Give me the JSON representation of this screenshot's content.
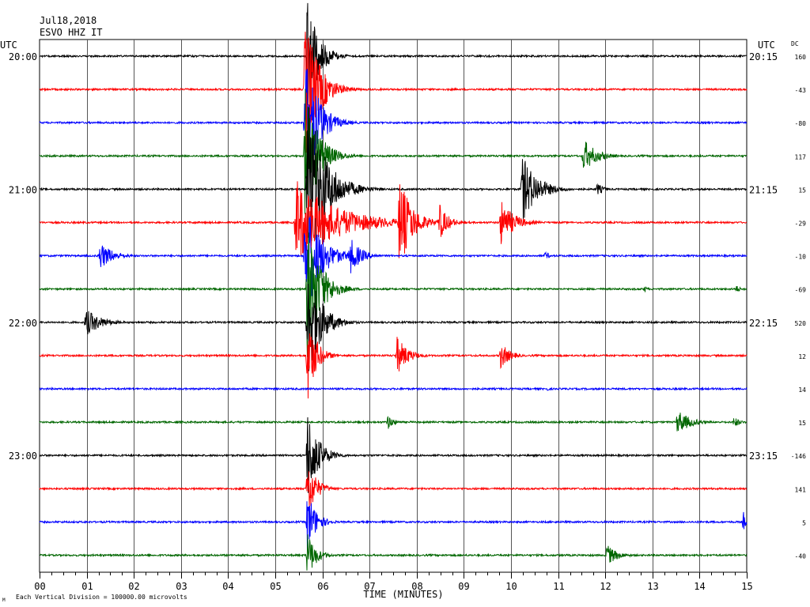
{
  "header": {
    "date": "Jul18,2018",
    "station": "ESVO HHZ IT",
    "left_tz": "UTC",
    "right_tz": "UTC",
    "dc_label": "DC"
  },
  "footer": {
    "note": "Each Vertical Division = 100000.00 microvolts",
    "mark": "M"
  },
  "chart_data": {
    "type": "line",
    "title": "",
    "xlabel": "TIME (MINUTES)",
    "ylabel": "",
    "xlim": [
      0,
      15
    ],
    "x_ticks": [
      "00",
      "01",
      "02",
      "03",
      "04",
      "05",
      "06",
      "07",
      "08",
      "09",
      "10",
      "11",
      "12",
      "13",
      "14",
      "15"
    ],
    "trace_colors": [
      "#000000",
      "#ff0000",
      "#0000ff",
      "#006600"
    ],
    "rows": [
      {
        "left": "20:00",
        "right": "20:15",
        "dc": "160"
      },
      {
        "left": "",
        "right": "",
        "dc": "-43"
      },
      {
        "left": "",
        "right": "",
        "dc": "-80"
      },
      {
        "left": "",
        "right": "",
        "dc": "117"
      },
      {
        "left": "21:00",
        "right": "21:15",
        "dc": "15"
      },
      {
        "left": "",
        "right": "",
        "dc": "-29"
      },
      {
        "left": "",
        "right": "",
        "dc": "-10"
      },
      {
        "left": "",
        "right": "",
        "dc": "-69"
      },
      {
        "left": "22:00",
        "right": "22:15",
        "dc": "520"
      },
      {
        "left": "",
        "right": "",
        "dc": "12"
      },
      {
        "left": "",
        "right": "",
        "dc": "14"
      },
      {
        "left": "",
        "right": "",
        "dc": "15"
      },
      {
        "left": "23:00",
        "right": "23:15",
        "dc": "-146"
      },
      {
        "left": "",
        "right": "",
        "dc": "141"
      },
      {
        "left": "",
        "right": "",
        "dc": "5"
      },
      {
        "left": "",
        "right": "",
        "dc": "-40"
      }
    ],
    "events": [
      {
        "row": 0,
        "start": 5.65,
        "dur": 0.5,
        "amp": 80
      },
      {
        "row": 1,
        "start": 5.6,
        "dur": 0.6,
        "amp": 100
      },
      {
        "row": 2,
        "start": 5.6,
        "dur": 0.6,
        "amp": 90
      },
      {
        "row": 3,
        "start": 5.6,
        "dur": 0.6,
        "amp": 90
      },
      {
        "row": 3,
        "start": 11.5,
        "dur": 0.6,
        "amp": 22
      },
      {
        "row": 4,
        "start": 5.65,
        "dur": 0.8,
        "amp": 120
      },
      {
        "row": 4,
        "start": 10.2,
        "dur": 0.7,
        "amp": 45
      },
      {
        "row": 4,
        "start": 11.8,
        "dur": 0.3,
        "amp": 8
      },
      {
        "row": 5,
        "start": 5.4,
        "dur": 1.9,
        "amp": 55
      },
      {
        "row": 5,
        "start": 7.6,
        "dur": 0.6,
        "amp": 60
      },
      {
        "row": 5,
        "start": 8.45,
        "dur": 0.4,
        "amp": 25
      },
      {
        "row": 5,
        "start": 9.75,
        "dur": 0.6,
        "amp": 30
      },
      {
        "row": 5,
        "start": 3.25,
        "dur": 0.15,
        "amp": 3
      },
      {
        "row": 6,
        "start": 1.25,
        "dur": 0.6,
        "amp": 18
      },
      {
        "row": 6,
        "start": 5.6,
        "dur": 0.7,
        "amp": 80
      },
      {
        "row": 6,
        "start": 6.55,
        "dur": 0.5,
        "amp": 25
      },
      {
        "row": 6,
        "start": 10.7,
        "dur": 0.2,
        "amp": 6
      },
      {
        "row": 7,
        "start": 5.65,
        "dur": 0.6,
        "amp": 90
      },
      {
        "row": 7,
        "start": 12.8,
        "dur": 0.15,
        "amp": 5
      },
      {
        "row": 7,
        "start": 14.75,
        "dur": 0.2,
        "amp": 5
      },
      {
        "row": 8,
        "start": 0.95,
        "dur": 0.7,
        "amp": 18
      },
      {
        "row": 8,
        "start": 5.65,
        "dur": 0.6,
        "amp": 80
      },
      {
        "row": 9,
        "start": 5.65,
        "dur": 0.4,
        "amp": 60
      },
      {
        "row": 9,
        "start": 7.55,
        "dur": 0.5,
        "amp": 25
      },
      {
        "row": 9,
        "start": 9.75,
        "dur": 0.4,
        "amp": 18
      },
      {
        "row": 10,
        "start": 10.75,
        "dur": 0.1,
        "amp": 3
      },
      {
        "row": 11,
        "start": 7.35,
        "dur": 0.3,
        "amp": 10
      },
      {
        "row": 11,
        "start": 13.5,
        "dur": 0.6,
        "amp": 16
      },
      {
        "row": 11,
        "start": 14.7,
        "dur": 0.25,
        "amp": 8
      },
      {
        "row": 12,
        "start": 5.65,
        "dur": 0.5,
        "amp": 60
      },
      {
        "row": 13,
        "start": 5.65,
        "dur": 0.4,
        "amp": 40
      },
      {
        "row": 14,
        "start": 5.65,
        "dur": 0.4,
        "amp": 40
      },
      {
        "row": 14,
        "start": 14.9,
        "dur": 0.1,
        "amp": 14
      },
      {
        "row": 15,
        "start": 5.65,
        "dur": 0.4,
        "amp": 30
      },
      {
        "row": 15,
        "start": 12.0,
        "dur": 0.5,
        "amp": 14
      }
    ]
  }
}
